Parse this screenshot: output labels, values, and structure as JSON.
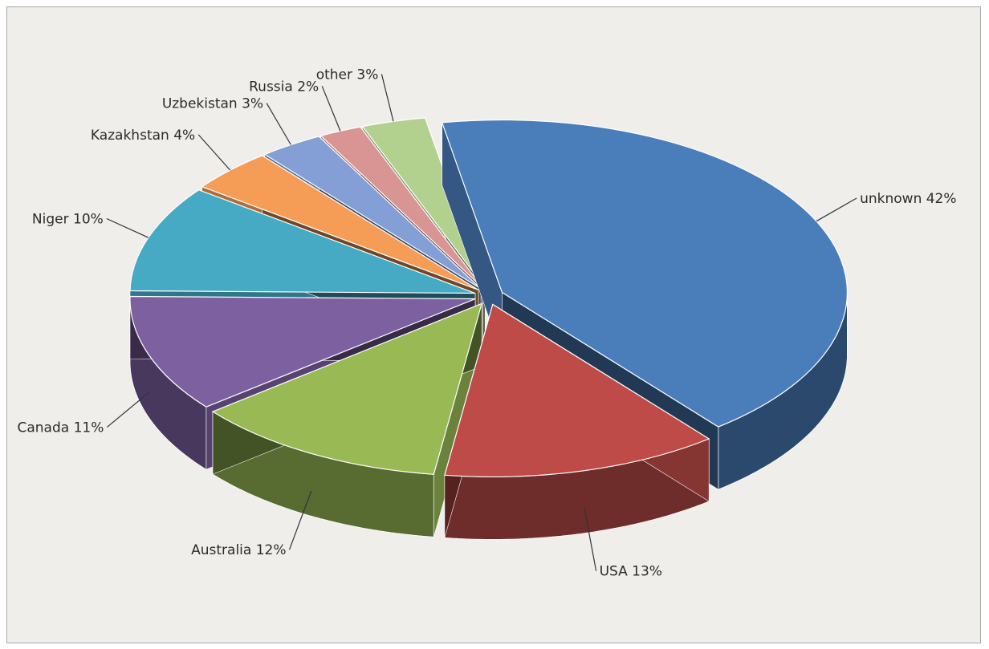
{
  "chart_data": {
    "type": "pie",
    "style": "3d-exploded",
    "title": "",
    "legend": "none",
    "slices": [
      {
        "label": "unknown",
        "value": 42,
        "text": "unknown 42%",
        "color": "#4a7ebb"
      },
      {
        "label": "USA",
        "value": 13,
        "text": "USA 13%",
        "color": "#be4b48"
      },
      {
        "label": "Australia",
        "value": 12,
        "text": "Australia 12%",
        "color": "#98b954"
      },
      {
        "label": "Canada",
        "value": 11,
        "text": "Canada 11%",
        "color": "#7d60a0"
      },
      {
        "label": "Niger",
        "value": 10,
        "text": "Niger 10%",
        "color": "#46aac5"
      },
      {
        "label": "Kazakhstan",
        "value": 4,
        "text": "Kazakhstan 4%",
        "color": "#f59d56"
      },
      {
        "label": "Uzbekistan",
        "value": 3,
        "text": "Uzbekistan 3%",
        "color": "#849fd5"
      },
      {
        "label": "Russia",
        "value": 2,
        "text": "Russia 2%",
        "color": "#d99594"
      },
      {
        "label": "other",
        "value": 3,
        "text": "other 3%",
        "color": "#b2d18e"
      }
    ]
  }
}
